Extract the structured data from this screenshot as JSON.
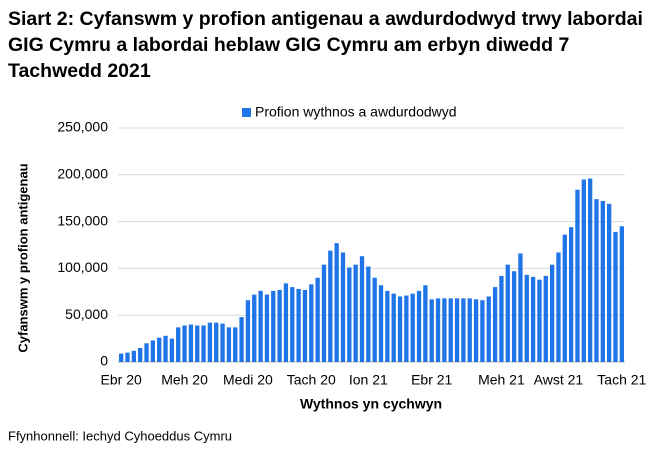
{
  "chart_data": {
    "type": "bar",
    "title": "Siart 2: Cyfanswm y profion antigenau a awdurdodwyd trwy labordai GIG Cymru a labordai heblaw GIG Cymru am erbyn diwedd 7 Tachwedd 2021",
    "y_label": "Cyfanswm y profion antigenau",
    "x_label": "Wythnos yn cychwyn",
    "source": "Ffynhonnell: Iechyd Cyhoeddus Cymru",
    "categories": [
      "Ebr 20",
      null,
      null,
      null,
      null,
      null,
      null,
      null,
      null,
      null,
      "Meh 20",
      null,
      null,
      null,
      null,
      null,
      null,
      null,
      null,
      null,
      "Medi 20",
      null,
      null,
      null,
      null,
      null,
      null,
      null,
      null,
      null,
      "Tach 20",
      null,
      null,
      null,
      null,
      null,
      null,
      null,
      null,
      "Ion 21",
      null,
      null,
      null,
      null,
      null,
      null,
      null,
      null,
      null,
      "Ebr 21",
      null,
      null,
      null,
      null,
      null,
      null,
      null,
      null,
      null,
      null,
      "Meh 21",
      null,
      null,
      null,
      null,
      null,
      null,
      null,
      null,
      "Awst 21",
      null,
      null,
      null,
      null,
      null,
      null,
      null,
      null,
      null,
      "Tach 21"
    ],
    "series": [
      {
        "name": "Profion wythnos a awdurdodwyd",
        "color": "#1f75e8",
        "values": [
          9000,
          10000,
          12000,
          15000,
          20000,
          23000,
          26000,
          28000,
          25000,
          37000,
          39000,
          40000,
          39000,
          39000,
          42000,
          42000,
          41000,
          37000,
          37000,
          48000,
          66000,
          72000,
          76000,
          72000,
          76000,
          77000,
          84000,
          80000,
          78000,
          77000,
          83000,
          90000,
          104000,
          119000,
          127000,
          117000,
          101000,
          104000,
          113000,
          102000,
          90000,
          82000,
          76000,
          73000,
          70000,
          71000,
          73000,
          76000,
          82000,
          67000,
          68000,
          68000,
          68000,
          68000,
          68000,
          68000,
          67000,
          66000,
          70000,
          80000,
          92000,
          104000,
          97000,
          116000,
          93000,
          91000,
          88000,
          92000,
          104000,
          117000,
          136000,
          144000,
          184000,
          195000,
          196000,
          174000,
          172000,
          169000,
          139000,
          145000
        ]
      }
    ],
    "ylim": [
      0,
      250000
    ],
    "yticks": [
      0,
      {
        "value": 50000,
        "label": "50,000"
      },
      {
        "value": 100000,
        "label": "100,000"
      },
      {
        "value": 150000,
        "label": "150,000"
      },
      {
        "value": 200000,
        "label": "200,000"
      },
      {
        "value": 250000,
        "label": "250,000"
      }
    ],
    "grid": true
  }
}
